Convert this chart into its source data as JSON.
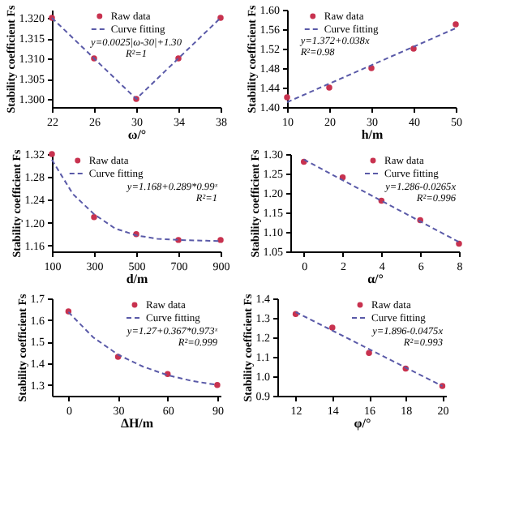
{
  "chart_data": [
    {
      "type": "scatter",
      "xlabel": "ω/°",
      "ylabel": "Stability coefficient Fs",
      "xlim": [
        22,
        38
      ],
      "xticks": [
        22,
        26,
        30,
        34,
        38
      ],
      "ylim": [
        1.298,
        1.322
      ],
      "yticks": [
        {
          "value": 1.3,
          "label": "1.300"
        },
        {
          "value": 1.305,
          "label": "1.305"
        },
        {
          "value": 1.31,
          "label": "1.310"
        },
        {
          "value": 1.315,
          "label": "1.315"
        },
        {
          "value": 1.32,
          "label": "1.320"
        }
      ],
      "grid": false,
      "legend": "top",
      "annotations": [
        "y=0.0025|ω-30|+1.30",
        "R²=1"
      ],
      "series": [
        {
          "name": "Raw data",
          "marker": "circle",
          "color": "#c8324f",
          "x": [
            22,
            26,
            30,
            34,
            38
          ],
          "values": [
            1.32,
            1.31,
            1.3,
            1.31,
            1.32
          ]
        },
        {
          "name": "Curve fitting",
          "type": "line",
          "line_style": "dashed",
          "color": "#5a5aa8",
          "x": [
            22,
            30,
            38
          ],
          "values": [
            1.32,
            1.3,
            1.32
          ]
        }
      ]
    },
    {
      "type": "scatter",
      "xlabel": "h/m",
      "ylabel": "Stability coefficient Fs",
      "xlim": [
        10,
        50
      ],
      "xticks": [
        10,
        20,
        30,
        40,
        50
      ],
      "ylim": [
        1.4,
        1.6
      ],
      "yticks": [
        {
          "value": 1.4,
          "label": "1.40"
        },
        {
          "value": 1.44,
          "label": "1.44"
        },
        {
          "value": 1.48,
          "label": "1.48"
        },
        {
          "value": 1.52,
          "label": "1.52"
        },
        {
          "value": 1.56,
          "label": "1.56"
        },
        {
          "value": 1.6,
          "label": "1.60"
        }
      ],
      "grid": false,
      "legend": "top left",
      "annotations": [
        "y=1.372+0.038x",
        "R²=0.98"
      ],
      "series": [
        {
          "name": "Raw data",
          "marker": "circle",
          "color": "#c8324f",
          "x": [
            10,
            20,
            30,
            40,
            50
          ],
          "values": [
            1.42,
            1.44,
            1.48,
            1.52,
            1.57
          ]
        },
        {
          "name": "Curve fitting",
          "type": "line",
          "line_style": "dashed",
          "color": "#5a5aa8",
          "x": [
            10,
            50
          ],
          "values": [
            1.41,
            1.562
          ]
        }
      ]
    },
    {
      "type": "scatter",
      "xlabel": "d/m",
      "ylabel": "Stability coefficient Fs",
      "xlim": [
        100,
        900
      ],
      "xticks": [
        100,
        300,
        500,
        700,
        900
      ],
      "ylim": [
        1.15,
        1.32
      ],
      "yticks": [
        {
          "value": 1.16,
          "label": "1.16"
        },
        {
          "value": 1.2,
          "label": "1.20"
        },
        {
          "value": 1.24,
          "label": "1.24"
        },
        {
          "value": 1.28,
          "label": "1.28"
        },
        {
          "value": 1.32,
          "label": "1.32"
        }
      ],
      "grid": false,
      "legend": "top left",
      "annotations": [
        "y=1.168+0.289*0.99ˣ",
        "R²=1"
      ],
      "series": [
        {
          "name": "Raw data",
          "marker": "circle",
          "color": "#c8324f",
          "x": [
            100,
            300,
            500,
            700,
            900
          ],
          "values": [
            1.32,
            1.21,
            1.18,
            1.17,
            1.17
          ]
        },
        {
          "name": "Curve fitting",
          "type": "line",
          "line_style": "dashed",
          "color": "#5a5aa8",
          "x": [
            100,
            200,
            300,
            400,
            500,
            600,
            700,
            900
          ],
          "values": [
            1.31,
            1.25,
            1.215,
            1.19,
            1.178,
            1.172,
            1.17,
            1.168
          ]
        }
      ]
    },
    {
      "type": "scatter",
      "xlabel": "α/°",
      "ylabel": "Stability coefficient Fs",
      "xlim": [
        -0.7,
        8
      ],
      "xticks": [
        0,
        2,
        4,
        6,
        8
      ],
      "ylim": [
        1.05,
        1.3
      ],
      "yticks": [
        {
          "value": 1.05,
          "label": "1.05"
        },
        {
          "value": 1.1,
          "label": "1.10"
        },
        {
          "value": 1.15,
          "label": "1.15"
        },
        {
          "value": 1.2,
          "label": "1.20"
        },
        {
          "value": 1.25,
          "label": "1.25"
        },
        {
          "value": 1.3,
          "label": "1.30"
        }
      ],
      "grid": false,
      "legend": "top right",
      "annotations": [
        "y=1.286-0.0265x",
        "R²=0.996"
      ],
      "series": [
        {
          "name": "Raw data",
          "marker": "circle",
          "color": "#c8324f",
          "x": [
            0,
            2,
            4,
            6,
            8
          ],
          "values": [
            1.28,
            1.24,
            1.18,
            1.13,
            1.07
          ]
        },
        {
          "name": "Curve fitting",
          "type": "line",
          "line_style": "dashed",
          "color": "#5a5aa8",
          "x": [
            0,
            8
          ],
          "values": [
            1.286,
            1.074
          ]
        }
      ]
    },
    {
      "type": "scatter",
      "xlabel": "ΔH/m",
      "ylabel": "Stability coefficient Fs",
      "xlim": [
        -10,
        92
      ],
      "xticks": [
        0,
        30,
        60,
        90
      ],
      "ylim": [
        1.25,
        1.7
      ],
      "yticks": [
        1.3,
        1.4,
        1.5,
        1.6,
        1.7
      ],
      "grid": false,
      "legend": "top right",
      "annotations": [
        "y=1.27+0.367*0.973ˣ",
        "R²=0.999"
      ],
      "series": [
        {
          "name": "Raw data",
          "marker": "circle",
          "color": "#c8324f",
          "x": [
            0,
            30,
            60,
            90
          ],
          "values": [
            1.64,
            1.43,
            1.35,
            1.3
          ]
        },
        {
          "name": "Curve fitting",
          "type": "line",
          "line_style": "dashed",
          "color": "#5a5aa8",
          "x": [
            0,
            15,
            30,
            45,
            60,
            75,
            90
          ],
          "values": [
            1.637,
            1.52,
            1.44,
            1.385,
            1.345,
            1.318,
            1.3
          ]
        }
      ]
    },
    {
      "type": "scatter",
      "xlabel": "φ/°",
      "ylabel": "Stability coefficient Fs",
      "xlim": [
        11,
        20.2
      ],
      "xticks": [
        12,
        14,
        16,
        18,
        20
      ],
      "ylim": [
        0.9,
        1.4
      ],
      "yticks": [
        0.9,
        {
          "value": 1.0,
          "label": "1.0"
        },
        1.1,
        1.2,
        1.3,
        1.4
      ],
      "grid": false,
      "legend": "top right",
      "annotations": [
        "y=1.896-0.0475x",
        "R²=0.993"
      ],
      "series": [
        {
          "name": "Raw data",
          "marker": "circle",
          "color": "#c8324f",
          "x": [
            12,
            14,
            16,
            18,
            20
          ],
          "values": [
            1.32,
            1.25,
            1.12,
            1.04,
            0.95
          ]
        },
        {
          "name": "Curve fitting",
          "type": "line",
          "line_style": "dashed",
          "color": "#5a5aa8",
          "x": [
            12,
            20
          ],
          "values": [
            1.33,
            0.95
          ]
        }
      ]
    }
  ]
}
